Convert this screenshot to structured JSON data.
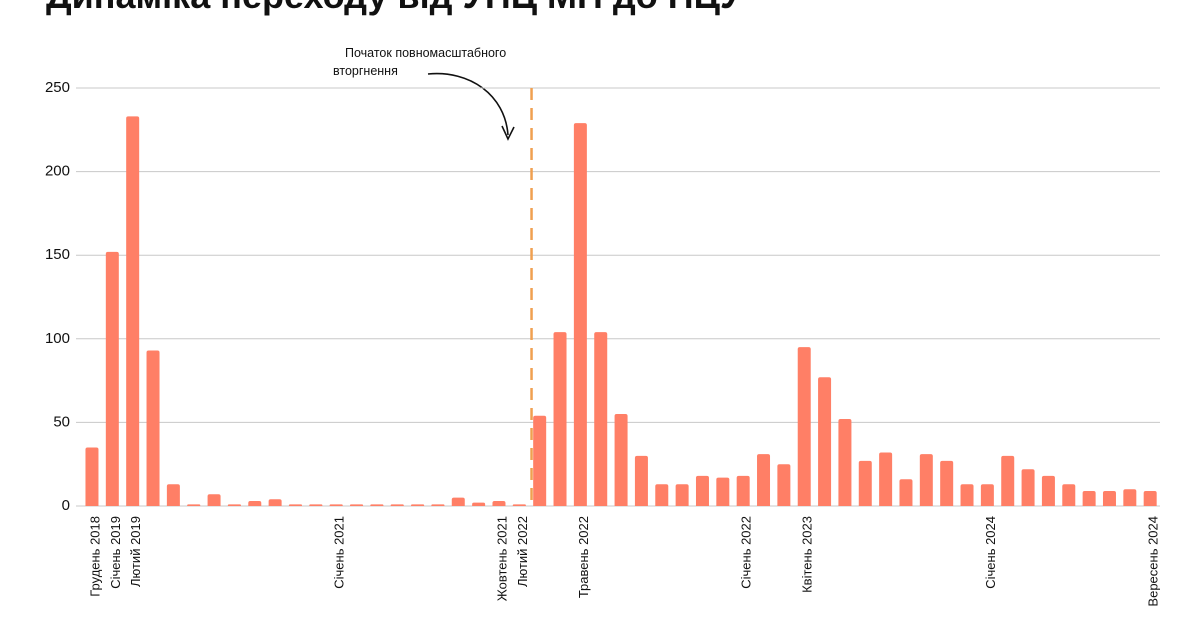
{
  "chart_data": {
    "type": "bar",
    "title": "Динаміка переходу від УПЦ МП до ПЦУ",
    "categories": [
      "Грудень 2018",
      "Січень 2019",
      "Лютий 2019",
      null,
      null,
      null,
      null,
      null,
      null,
      null,
      null,
      null,
      "Січень 2021",
      null,
      null,
      null,
      null,
      null,
      null,
      null,
      "Жовтень 2021",
      "Лютий 2022",
      null,
      null,
      "Травень 2022",
      null,
      null,
      null,
      null,
      null,
      null,
      null,
      "Січень 2022",
      null,
      null,
      "Квітень 2023",
      null,
      null,
      null,
      null,
      null,
      null,
      null,
      null,
      "Січень 2024",
      null,
      null,
      null,
      null,
      null,
      null,
      null,
      "Вересень 2024"
    ],
    "values": [
      35,
      152,
      233,
      93,
      13,
      1,
      7,
      1,
      3,
      4,
      1,
      1,
      1,
      1,
      1,
      1,
      1,
      1,
      5,
      2,
      3,
      1,
      54,
      104,
      229,
      104,
      55,
      30,
      13,
      13,
      18,
      17,
      18,
      31,
      25,
      95,
      77,
      52,
      27,
      32,
      16,
      31,
      27,
      13,
      13,
      30,
      22,
      18,
      13,
      9,
      9,
      10,
      9
    ],
    "color": "#ff7f66",
    "ylim": [
      0,
      250
    ],
    "yticks": [
      0,
      50,
      100,
      150,
      200,
      250
    ],
    "grid": true,
    "annotation": {
      "lines": [
        "Початок повномасштабного",
        "вторгнення"
      ],
      "color": "#f0a050"
    }
  }
}
